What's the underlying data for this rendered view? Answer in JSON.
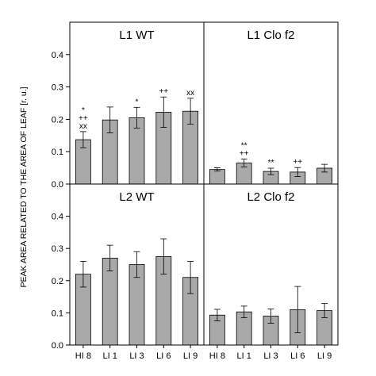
{
  "chart_data": {
    "type": "bar",
    "ylabel": "PEAK AREA RELATED TO THE AREA OF LEAF [r. u.]",
    "categories": [
      "HI 8",
      "LI 1",
      "LI 3",
      "LI 6",
      "LI 9"
    ],
    "ylim": [
      0,
      0.5
    ],
    "yticks": [
      "0.0",
      "0.1",
      "0.2",
      "0.3",
      "0.4"
    ],
    "bar_color": "#a9a9a9",
    "panels": [
      {
        "title": "L1 WT",
        "values": [
          0.137,
          0.198,
          0.205,
          0.222,
          0.225
        ],
        "errors": [
          0.025,
          0.04,
          0.032,
          0.047,
          0.04
        ],
        "annotations": [
          [
            "*",
            "++",
            "xx"
          ],
          [],
          [
            "*"
          ],
          [
            "++"
          ],
          [
            "xx"
          ]
        ]
      },
      {
        "title": "L1 Clo f2",
        "values": [
          0.045,
          0.065,
          0.039,
          0.037,
          0.049
        ],
        "errors": [
          0.005,
          0.012,
          0.01,
          0.014,
          0.012
        ],
        "annotations": [
          [],
          [
            "**",
            "++"
          ],
          [
            "**"
          ],
          [
            "++"
          ],
          []
        ]
      },
      {
        "title": "L2 WT",
        "values": [
          0.22,
          0.27,
          0.25,
          0.275,
          0.21
        ],
        "errors": [
          0.04,
          0.04,
          0.04,
          0.055,
          0.05
        ],
        "annotations": [
          [],
          [],
          [],
          [],
          []
        ]
      },
      {
        "title": "L2 Clo f2",
        "values": [
          0.093,
          0.103,
          0.09,
          0.11,
          0.107
        ],
        "errors": [
          0.018,
          0.018,
          0.022,
          0.072,
          0.022
        ],
        "annotations": [
          [],
          [],
          [],
          [],
          []
        ]
      }
    ]
  }
}
